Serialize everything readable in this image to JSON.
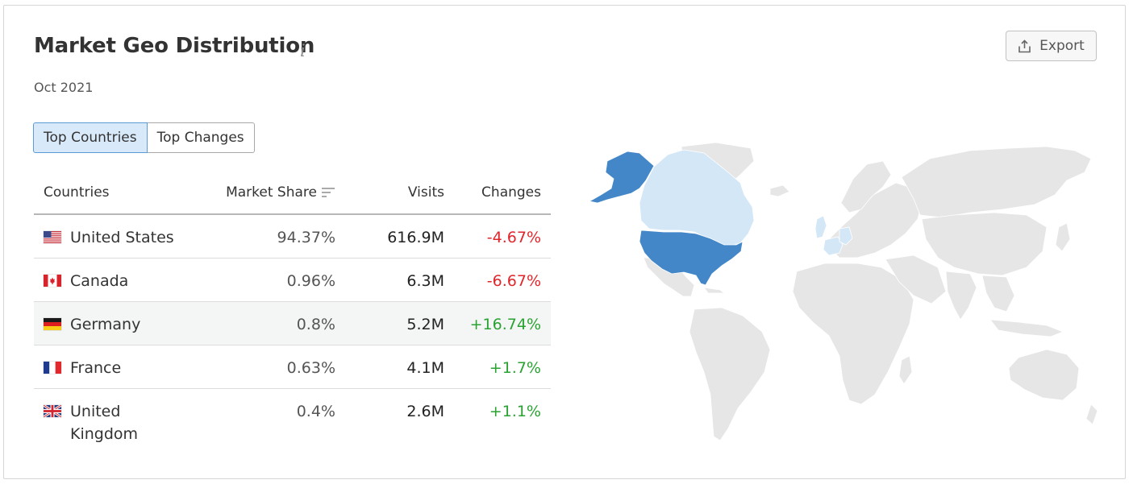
{
  "header": {
    "title": "Market Geo Distribution",
    "info_icon": "info-icon",
    "period": "Oct 2021",
    "export_label": "Export",
    "export_icon": "export-icon"
  },
  "tabs": [
    {
      "label": "Top Countries",
      "active": true
    },
    {
      "label": "Top Changes",
      "active": false
    }
  ],
  "table": {
    "columns": [
      "Countries",
      "Market Share",
      "Visits",
      "Changes"
    ],
    "sort_icon": "sort-descending-icon",
    "rows": [
      {
        "flag": "us-flag-icon",
        "country": "United States",
        "market_share": "94.37%",
        "visits": "616.9M",
        "change": "-4.67%",
        "trend": "negative"
      },
      {
        "flag": "ca-flag-icon",
        "country": "Canada",
        "market_share": "0.96%",
        "visits": "6.3M",
        "change": "-6.67%",
        "trend": "negative"
      },
      {
        "flag": "de-flag-icon",
        "country": "Germany",
        "market_share": "0.8%",
        "visits": "5.2M",
        "change": "+16.74%",
        "trend": "positive"
      },
      {
        "flag": "fr-flag-icon",
        "country": "France",
        "market_share": "0.63%",
        "visits": "4.1M",
        "change": "+1.7%",
        "trend": "positive"
      },
      {
        "flag": "gb-flag-icon",
        "country": "United Kingdom",
        "market_share": "0.4%",
        "visits": "2.6M",
        "change": "+1.1%",
        "trend": "positive"
      }
    ]
  },
  "map": {
    "highlight_strong": "United States",
    "highlight_light": [
      "Canada",
      "Germany",
      "France",
      "United Kingdom"
    ]
  },
  "colors": {
    "negative": "#e0262b",
    "positive": "#2aa232",
    "map_strong": "#4387c8",
    "map_light": "#d3e7f7",
    "map_land": "#e6e6e6",
    "tab_active_bg": "#d8e9f9"
  }
}
